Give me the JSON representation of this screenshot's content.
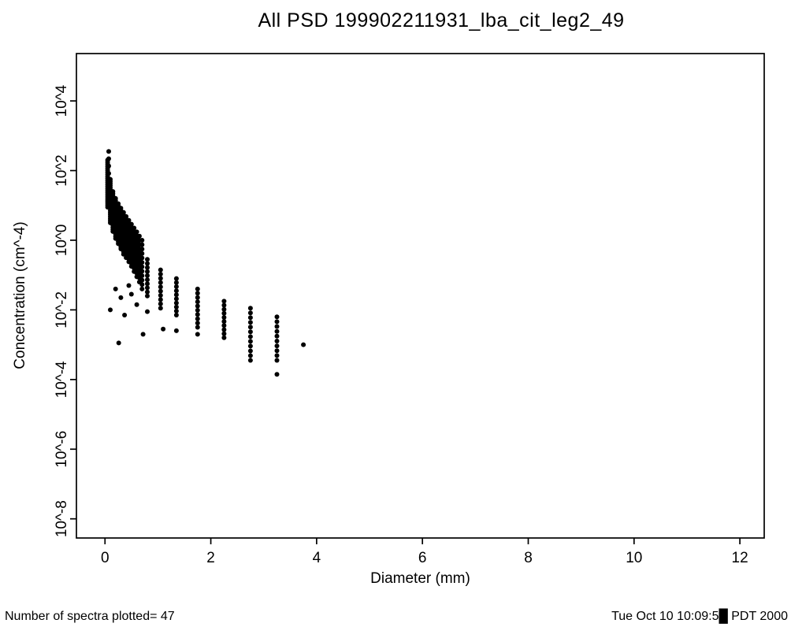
{
  "chart_data": {
    "type": "scatter",
    "title": "All PSD 199902211931_lba_cit_leg2_49",
    "xlabel": "Diameter (mm)",
    "ylabel": "Concentration (cm^-4)",
    "xlim": [
      -0.54,
      12.46
    ],
    "ylim_exp": [
      -8.55,
      5.36
    ],
    "x_ticks": [
      0,
      2,
      4,
      6,
      8,
      10,
      12
    ],
    "y_tick_exponents": [
      4,
      2,
      0,
      -2,
      -4,
      -6,
      -8
    ],
    "y_tick_labels": [
      "10^4",
      "10^2",
      "10^0",
      "10^-2",
      "10^-4",
      "10^-6",
      "10^-8"
    ],
    "grid": false,
    "legend": "none",
    "marker_color": "#000000",
    "series_bins": [
      {
        "d": 0.05,
        "lo": 0.95,
        "hi": 2.3,
        "n": 24
      },
      {
        "d": 0.07,
        "lo": 1.5,
        "hi": 2.55,
        "n": 6
      },
      {
        "d": 0.1,
        "lo": 0.5,
        "hi": 1.75,
        "n": 22
      },
      {
        "d": 0.15,
        "lo": 0.25,
        "hi": 1.4,
        "n": 20
      },
      {
        "d": 0.2,
        "lo": 0.05,
        "hi": 1.2,
        "n": 20
      },
      {
        "d": 0.25,
        "lo": -0.1,
        "hi": 1.05,
        "n": 19
      },
      {
        "d": 0.3,
        "lo": -0.25,
        "hi": 0.92,
        "n": 19
      },
      {
        "d": 0.35,
        "lo": -0.4,
        "hi": 0.8,
        "n": 18
      },
      {
        "d": 0.4,
        "lo": -0.5,
        "hi": 0.68,
        "n": 17
      },
      {
        "d": 0.45,
        "lo": -0.62,
        "hi": 0.57,
        "n": 16
      },
      {
        "d": 0.5,
        "lo": -0.75,
        "hi": 0.46,
        "n": 15
      },
      {
        "d": 0.55,
        "lo": -0.9,
        "hi": 0.35,
        "n": 14
      },
      {
        "d": 0.6,
        "lo": -1.05,
        "hi": 0.24,
        "n": 13
      },
      {
        "d": 0.65,
        "lo": -1.2,
        "hi": 0.12,
        "n": 12
      },
      {
        "d": 0.7,
        "lo": -1.4,
        "hi": 0.0,
        "n": 12
      },
      {
        "d": 0.8,
        "lo": -1.6,
        "hi": -0.55,
        "n": 10
      },
      {
        "d": 1.05,
        "lo": -1.95,
        "hi": -0.85,
        "n": 10
      },
      {
        "d": 1.35,
        "lo": -2.15,
        "hi": -1.1,
        "n": 10
      },
      {
        "d": 1.75,
        "lo": -2.5,
        "hi": -1.4,
        "n": 10
      },
      {
        "d": 2.25,
        "lo": -2.8,
        "hi": -1.75,
        "n": 10
      },
      {
        "d": 2.75,
        "lo": -3.45,
        "hi": -1.95,
        "n": 12
      },
      {
        "d": 3.25,
        "lo": -3.45,
        "hi": -2.2,
        "n": 10
      }
    ],
    "outlier_points": [
      [
        0.1,
        -2.0
      ],
      [
        0.2,
        -1.4
      ],
      [
        0.26,
        -2.95
      ],
      [
        0.3,
        -1.65
      ],
      [
        0.37,
        -2.15
      ],
      [
        0.45,
        -1.3
      ],
      [
        0.5,
        -1.55
      ],
      [
        0.6,
        -1.85
      ],
      [
        0.72,
        -2.7
      ],
      [
        0.8,
        -2.05
      ],
      [
        1.1,
        -2.55
      ],
      [
        1.35,
        -2.6
      ],
      [
        1.75,
        -2.7
      ],
      [
        3.25,
        -3.85
      ],
      [
        3.75,
        -3.0
      ]
    ]
  },
  "footer": {
    "left": "Number of spectra plotted= 47",
    "right": "Tue Oct 10 10:09:5█ PDT 2000"
  }
}
